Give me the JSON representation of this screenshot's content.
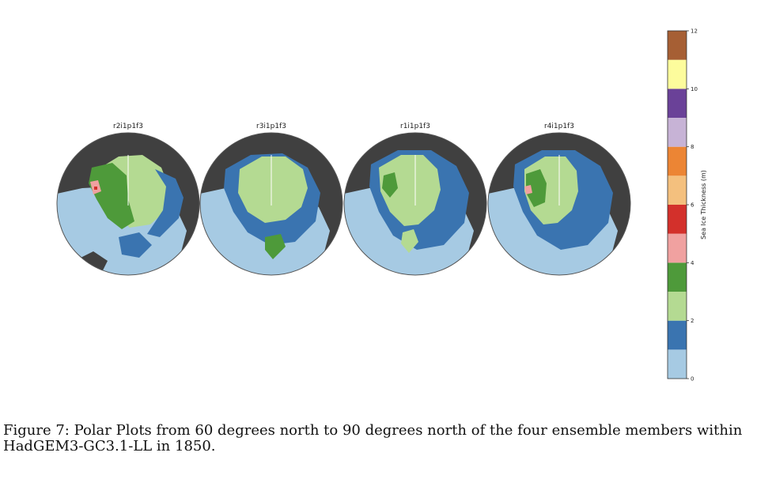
{
  "chart_data": {
    "type": "polar map",
    "panels": [
      {
        "title": "r2i1p1f3"
      },
      {
        "title": "r3i1p1f3"
      },
      {
        "title": "r1i1p1f3"
      },
      {
        "title": "r4i1p1f3"
      }
    ],
    "colorbar": {
      "label": "Sea Ice Thickness (m)",
      "range": [
        0,
        12
      ],
      "ticks": [
        0,
        2,
        4,
        6,
        8,
        10,
        12
      ],
      "bin_width": 1,
      "colors": [
        "#a6cae3",
        "#3a74b0",
        "#b4da92",
        "#4e9a3a",
        "#f0a1a0",
        "#d3302b",
        "#f4c07e",
        "#ec8534",
        "#c7b3d6",
        "#6a4198",
        "#fdfc9c",
        "#a65f34"
      ]
    },
    "land_color": "#404040",
    "outline_color": "#555555"
  },
  "caption": "Figure 7: Polar Plots from 60 degrees north to 90 degrees north of the four ensemble members within HadGEM3-GC3.1-LL in 1850."
}
